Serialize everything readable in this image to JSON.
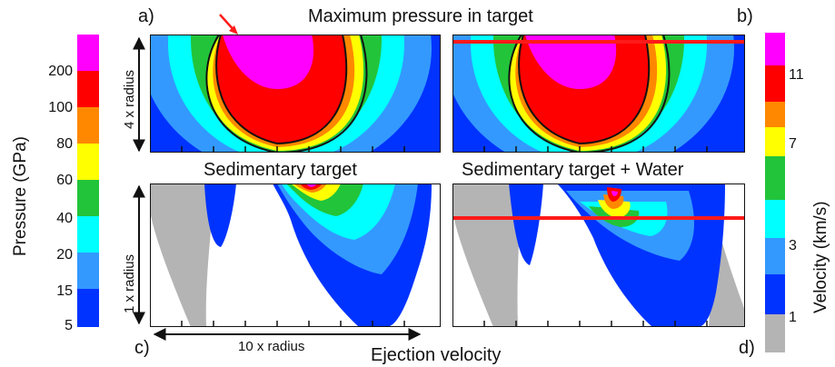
{
  "title_top": "Maximum pressure in target",
  "title_bottom_left": "Sedimentary target",
  "title_bottom_right": "Sedimentary target  + Water",
  "panel_letters": {
    "a": "a)",
    "b": "b)",
    "c": "c)",
    "d": "d)"
  },
  "left_colorbar": {
    "label": "Pressure (GPa)",
    "ticks": [
      "200",
      "100",
      "80",
      "60",
      "40",
      "20",
      "15",
      "5"
    ],
    "colors": [
      "#ff00ff",
      "#ff0000",
      "#ff8800",
      "#ffff00",
      "#22c43a",
      "#00ffff",
      "#3399ff",
      "#0033ff"
    ]
  },
  "right_colorbar": {
    "label": "Velocity (km/s)",
    "ticks": [
      "11",
      "7",
      "3",
      "1"
    ],
    "colors": [
      "#ff00ff",
      "#ff0000",
      "#ff8800",
      "#ffff00",
      "#22c43a",
      "#00ffff",
      "#3399ff",
      "#0033ff",
      "#b4b4b4"
    ]
  },
  "vertical_scale_top": "4 x radius",
  "vertical_scale_bottom": "1 x radius",
  "horizontal_scale": "10 x radius",
  "xlabel": "Ejection velocity",
  "colors": {
    "magenta": "#ff00ff",
    "red": "#ff0000",
    "orange": "#ff8800",
    "yellow": "#ffff00",
    "green": "#22c43a",
    "cyan": "#00ffff",
    "lightblue": "#3399ff",
    "blue": "#0033ff",
    "gray": "#b4b4b4",
    "redline": "#ff1a1a"
  },
  "icons": {
    "impact_arrow": "arrow-down-right-icon"
  }
}
